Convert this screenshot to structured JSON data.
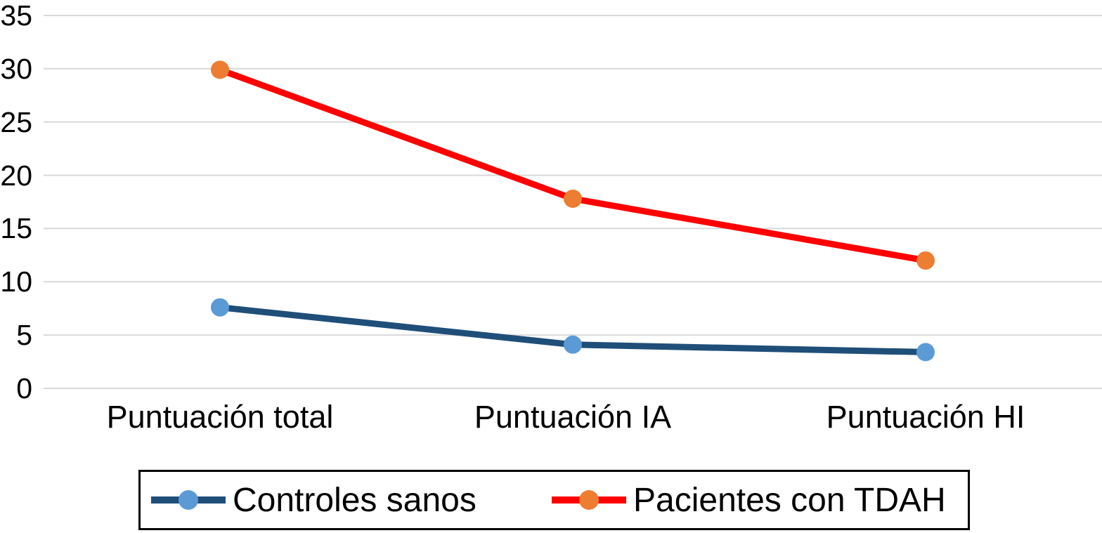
{
  "chart_data": {
    "type": "line",
    "categories": [
      "Puntuación total",
      "Puntuación IA",
      "Puntuación HI"
    ],
    "series": [
      {
        "name": "Controles sanos",
        "values": [
          7.6,
          4.1,
          3.4
        ],
        "line_color": "#1F4E79",
        "marker_color": "#5B9BD5"
      },
      {
        "name": "Pacientes con TDAH",
        "values": [
          29.9,
          17.8,
          12.0
        ],
        "line_color": "#FF0000",
        "marker_color": "#ED7D31"
      }
    ],
    "yticks": [
      0,
      5,
      10,
      15,
      20,
      25,
      30,
      35
    ],
    "ylim": [
      0,
      35
    ],
    "title": "",
    "xlabel": "",
    "ylabel": "",
    "grid": true,
    "gridline_color": "#D9D9D9",
    "legend_position": "bottom-boxed"
  }
}
